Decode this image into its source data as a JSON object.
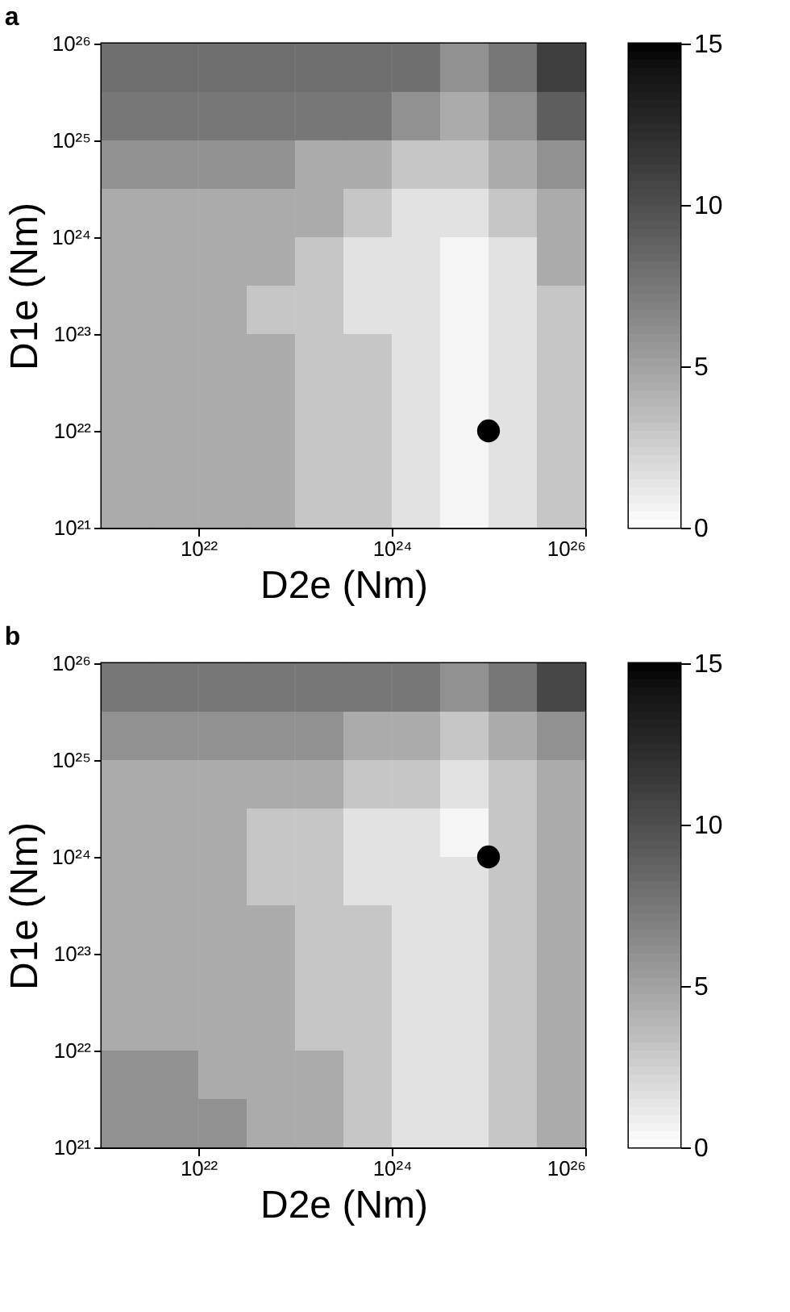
{
  "chart_data": [
    {
      "type": "heatmap",
      "title": "a",
      "xlabel": "D2e (Nm)",
      "ylabel": "D1e (Nm)",
      "log": "xy",
      "x": [
        1.78e+21,
        5.62e+21,
        1.78e+22,
        5.62e+22,
        1.78e+23,
        5.62e+23,
        1.78e+24,
        5.62e+24,
        1.78e+25,
        5.62e+25
      ],
      "y": [
        5.62e+25,
        1.78e+25,
        5.62e+24,
        1.78e+24,
        5.62e+23,
        1.78e+23,
        5.62e+22,
        1.78e+22,
        5.62e+21,
        1.78e+21
      ],
      "xlim": [
        1e+21,
        1e+26
      ],
      "ylim": [
        1e+21,
        1e+26
      ],
      "xticks": [
        {
          "value": 1e+22,
          "label": "10²²"
        },
        {
          "value": 1e+24,
          "label": "10²⁴"
        },
        {
          "value": 1e+26,
          "label": "10²⁶"
        }
      ],
      "yticks": [
        {
          "value": 1e+21,
          "label": "10²¹"
        },
        {
          "value": 1e+22,
          "label": "10²²"
        },
        {
          "value": 1e+23,
          "label": "10²³"
        },
        {
          "value": 1e+24,
          "label": "10²⁴"
        },
        {
          "value": 1e+25,
          "label": "10²⁵"
        },
        {
          "value": 1e+26,
          "label": "10²⁶"
        }
      ],
      "clim": [
        0,
        15
      ],
      "cticks": [
        0,
        5,
        10,
        15
      ],
      "grid": false,
      "cells": [
        [
          8,
          8,
          8,
          8,
          8,
          8,
          8,
          6,
          7.5,
          11
        ],
        [
          7.5,
          7.5,
          7.5,
          7.5,
          7.5,
          7.5,
          6,
          4.5,
          6,
          9
        ],
        [
          6,
          6,
          6,
          6,
          4.5,
          4.5,
          3,
          3,
          4.5,
          6
        ],
        [
          4.5,
          4.5,
          4.5,
          4.5,
          4.5,
          3,
          1.5,
          1.5,
          3,
          4.5
        ],
        [
          4.5,
          4.5,
          4.5,
          4.5,
          3,
          1.5,
          1.5,
          0.5,
          1.5,
          4.5
        ],
        [
          4.5,
          4.5,
          4.5,
          3,
          3,
          1.5,
          1.5,
          0.5,
          1.5,
          3
        ],
        [
          4.5,
          4.5,
          4.5,
          4.5,
          3,
          3,
          1.5,
          0.5,
          1.5,
          3
        ],
        [
          4.5,
          4.5,
          4.5,
          4.5,
          3,
          3,
          1.5,
          0.5,
          1.5,
          3
        ],
        [
          4.5,
          4.5,
          4.5,
          4.5,
          3,
          3,
          1.5,
          0.5,
          1.5,
          3
        ],
        [
          4.5,
          4.5,
          4.5,
          4.5,
          3,
          3,
          1.5,
          0.5,
          1.5,
          3
        ]
      ],
      "series": [
        {
          "type": "scatter",
          "x": [
            1e+25
          ],
          "values": [
            1e+22
          ],
          "color": "#000000",
          "marker": "circle"
        }
      ]
    },
    {
      "type": "heatmap",
      "title": "b",
      "xlabel": "D2e (Nm)",
      "ylabel": "D1e (Nm)",
      "log": "xy",
      "x": [
        1.78e+21,
        5.62e+21,
        1.78e+22,
        5.62e+22,
        1.78e+23,
        5.62e+23,
        1.78e+24,
        5.62e+24,
        1.78e+25,
        5.62e+25
      ],
      "y": [
        5.62e+25,
        1.78e+25,
        5.62e+24,
        1.78e+24,
        5.62e+23,
        1.78e+23,
        5.62e+22,
        1.78e+22,
        5.62e+21,
        1.78e+21
      ],
      "xlim": [
        1e+21,
        1e+26
      ],
      "ylim": [
        1e+21,
        1e+26
      ],
      "xticks": [
        {
          "value": 1e+22,
          "label": "10²²"
        },
        {
          "value": 1e+24,
          "label": "10²⁴"
        },
        {
          "value": 1e+26,
          "label": "10²⁶"
        }
      ],
      "yticks": [
        {
          "value": 1e+21,
          "label": "10²¹"
        },
        {
          "value": 1e+22,
          "label": "10²²"
        },
        {
          "value": 1e+23,
          "label": "10²³"
        },
        {
          "value": 1e+24,
          "label": "10²⁴"
        },
        {
          "value": 1e+25,
          "label": "10²⁵"
        },
        {
          "value": 1e+26,
          "label": "10²⁶"
        }
      ],
      "clim": [
        0,
        15
      ],
      "cticks": [
        0,
        5,
        10,
        15
      ],
      "grid": false,
      "cells": [
        [
          7.5,
          7.5,
          7.5,
          7.5,
          7.5,
          7.5,
          7.5,
          6,
          7.5,
          10.5
        ],
        [
          6,
          6,
          6,
          6,
          6,
          4.5,
          4.5,
          3,
          4.5,
          6
        ],
        [
          4.5,
          4.5,
          4.5,
          4.5,
          4.5,
          3,
          3,
          1.5,
          3,
          4.5
        ],
        [
          4.5,
          4.5,
          4.5,
          3,
          3,
          1.5,
          1.5,
          0.5,
          3,
          4.5
        ],
        [
          4.5,
          4.5,
          4.5,
          3,
          3,
          1.5,
          1.5,
          1.5,
          3,
          4.5
        ],
        [
          4.5,
          4.5,
          4.5,
          4.5,
          3,
          3,
          1.5,
          1.5,
          3,
          4.5
        ],
        [
          4.5,
          4.5,
          4.5,
          4.5,
          3,
          3,
          1.5,
          1.5,
          3,
          4.5
        ],
        [
          4.5,
          4.5,
          4.5,
          4.5,
          3,
          3,
          1.5,
          1.5,
          3,
          4.5
        ],
        [
          6,
          6,
          4.5,
          4.5,
          4.5,
          3,
          1.5,
          1.5,
          3,
          4.5
        ],
        [
          6,
          6,
          6,
          4.5,
          4.5,
          3,
          1.5,
          1.5,
          3,
          4.5
        ]
      ],
      "series": [
        {
          "type": "scatter",
          "x": [
            1e+25
          ],
          "values": [
            1e+24
          ],
          "color": "#000000",
          "marker": "circle"
        }
      ]
    }
  ]
}
